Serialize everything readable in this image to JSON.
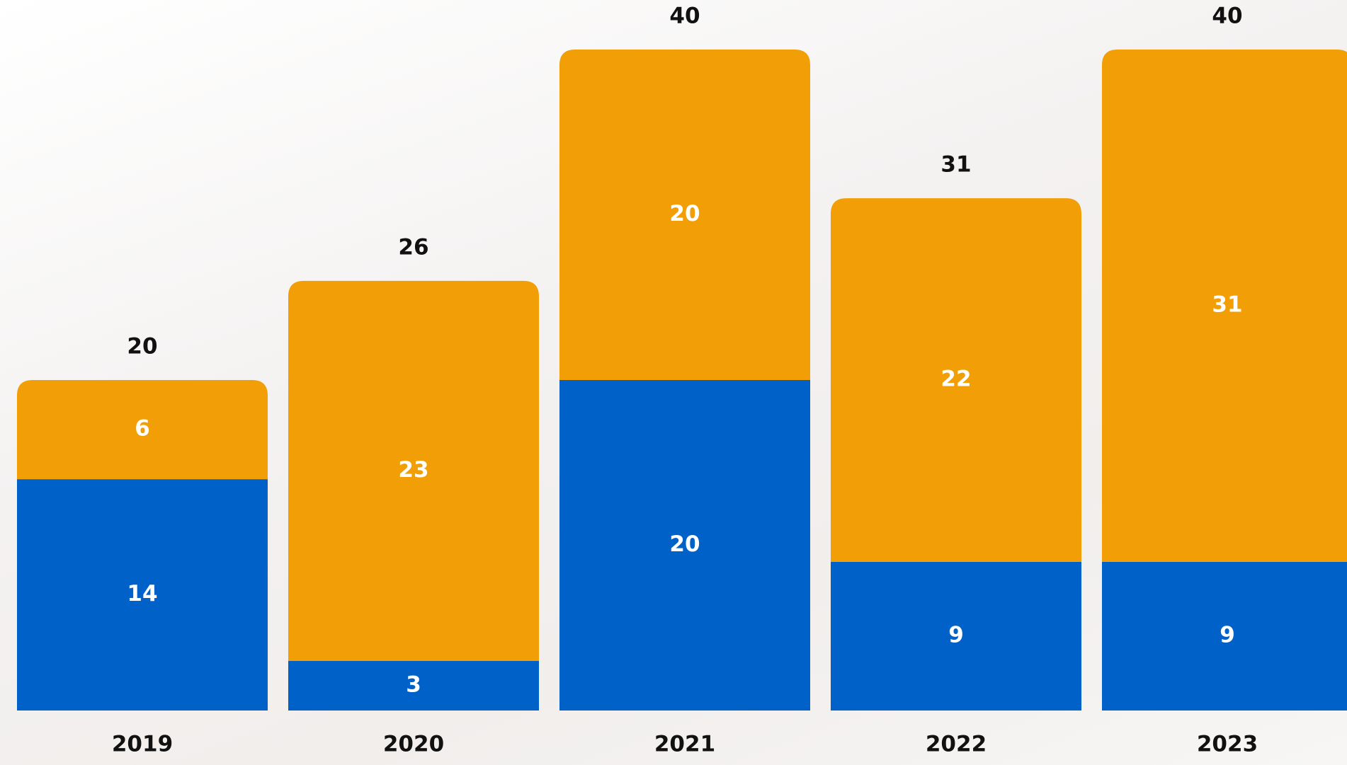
{
  "chart_data": {
    "type": "bar",
    "stacked": true,
    "categories": [
      "2019",
      "2020",
      "2021",
      "2022",
      "2023"
    ],
    "series": [
      {
        "color": "#0062c8",
        "values": [
          14,
          3,
          20,
          9,
          9
        ]
      },
      {
        "color": "#f29e06",
        "values": [
          6,
          23,
          20,
          22,
          31
        ]
      }
    ],
    "totals": [
      20,
      26,
      40,
      31,
      40
    ],
    "ylim": [
      0,
      40
    ]
  }
}
